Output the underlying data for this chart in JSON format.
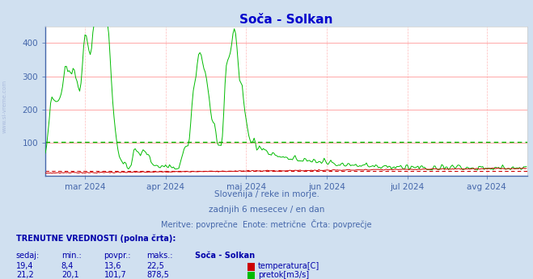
{
  "title": "Soča - Solkan",
  "bg_color": "#d0e0f0",
  "plot_bg_color": "#ffffff",
  "title_color": "#0000cc",
  "axis_label_color": "#4466aa",
  "watermark_text": "www.si-vreme.com",
  "subtitle_lines": [
    "Slovenija / reke in morje.",
    "zadnjih 6 mesecev / en dan",
    "Meritve: povprečne  Enote: metrične  Črta: povprečje"
  ],
  "subtitle_color": "#4466aa",
  "ylim": [
    0,
    450
  ],
  "yticks": [
    100,
    200,
    300,
    400
  ],
  "xlabels": [
    "mar 2024",
    "apr 2024",
    "maj 2024",
    "jun 2024",
    "jul 2024",
    "avg 2024"
  ],
  "grid_color_y": "#ff9999",
  "grid_color_x": "#ffbbbb",
  "flow_color": "#00bb00",
  "temp_color": "#cc0000",
  "avg_flow_line": 101.7,
  "avg_temp_line": 13.6,
  "info_title": "TRENUTNE VREDNOSTI (polna črta):",
  "info_headers": [
    "sedaj:",
    "min.:",
    "povpr.:",
    "maks.:",
    "Soča - Solkan"
  ],
  "info_row1": [
    "19,4",
    "8,4",
    "13,6",
    "22,5",
    "temperatura[C]"
  ],
  "info_row2": [
    "21,2",
    "20,1",
    "101,7",
    "878,5",
    "pretok[m3/s]"
  ],
  "info_color": "#0000aa",
  "info_header_color": "#0000aa",
  "side_text": "www.si-vreme.com",
  "side_text_color": "#aabbdd",
  "n_points": 365,
  "month_tick_positions": [
    30,
    91,
    152,
    213,
    274,
    334
  ],
  "xlim": [
    0,
    365
  ]
}
